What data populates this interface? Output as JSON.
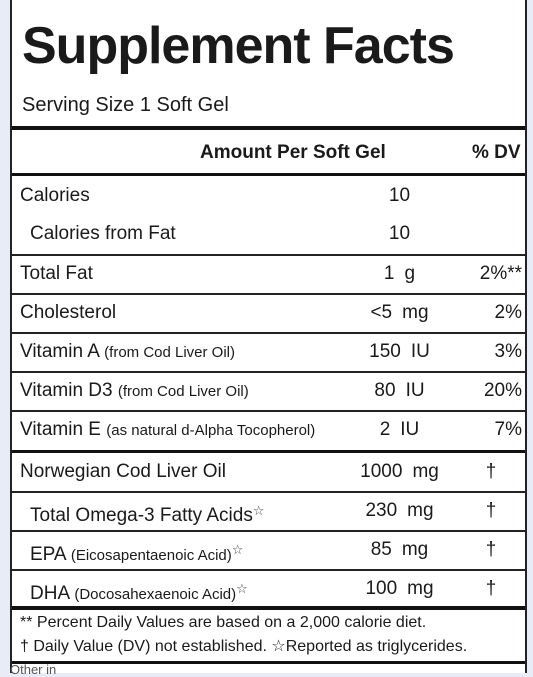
{
  "label": {
    "title": "Supplement Facts",
    "serving": "Serving Size 1 Soft Gel",
    "header_amount": "Amount Per Soft Gel",
    "header_dv": "% DV",
    "rows": [
      {
        "name": "Calories",
        "sub": "",
        "amount": "10",
        "unit": "",
        "dv": ""
      },
      {
        "name": "Calories from Fat",
        "sub": "",
        "amount": "10",
        "unit": "",
        "dv": ""
      },
      {
        "name": "Total Fat",
        "sub": "",
        "amount": "1",
        "unit": "g",
        "dv": "2%**"
      },
      {
        "name": "Cholesterol",
        "sub": "",
        "amount": "<5",
        "unit": "mg",
        "dv": "2%"
      },
      {
        "name": "Vitamin A",
        "sub": "(from Cod Liver Oil)",
        "amount": "150",
        "unit": "IU",
        "dv": "3%"
      },
      {
        "name": "Vitamin D3",
        "sub": "(from Cod Liver Oil)",
        "amount": "80",
        "unit": "IU",
        "dv": "20%"
      },
      {
        "name": "Vitamin E",
        "sub": "(as natural d-Alpha Tocopherol)",
        "amount": "2",
        "unit": "IU",
        "dv": "7%"
      },
      {
        "name": "Norwegian Cod Liver Oil",
        "sub": "",
        "amount": "1000",
        "unit": "mg",
        "dv": "†"
      },
      {
        "name": "Total Omega-3 Fatty Acids",
        "sub": "",
        "mark": "☆",
        "amount": "230",
        "unit": "mg",
        "dv": "†"
      },
      {
        "name": "EPA",
        "sub": "(Eicosapentaenoic Acid)",
        "mark": "☆",
        "amount": "85",
        "unit": "mg",
        "dv": "†"
      },
      {
        "name": "DHA",
        "sub": "(Docosahexaenoic Acid)",
        "mark": "☆",
        "amount": "100",
        "unit": "mg",
        "dv": "†"
      }
    ],
    "footnote_1": "** Percent Daily Values are based on a 2,000 calorie diet.",
    "footnote_2": "† Daily Value (DV) not established.  ☆Reported as triglycerides.",
    "cut_text": "Other in"
  }
}
